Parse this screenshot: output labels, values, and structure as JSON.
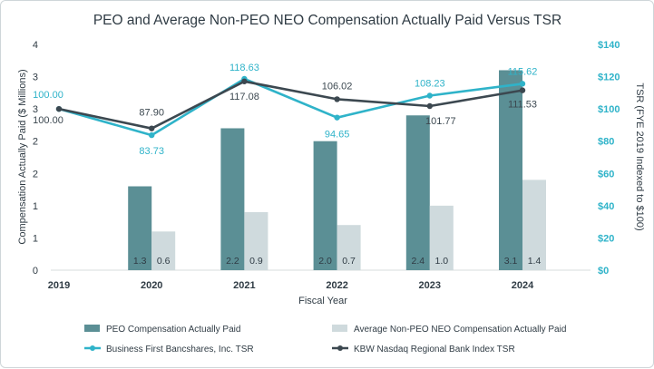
{
  "chart_data": {
    "type": "bar",
    "title": "PEO and Average Non-PEO NEO Compensation Actually Paid Versus TSR",
    "xlabel": "Fiscal Year",
    "ylabel": "Compensation Actually Paid ($ Millions)",
    "y2label": "TSR (FYE 2019 Indexed to $100)",
    "categories": [
      "2019",
      "2020",
      "2021",
      "2022",
      "2023",
      "2024"
    ],
    "ylim": [
      0,
      3.5
    ],
    "y_ticks": [
      {
        "value": 0,
        "label": "0"
      },
      {
        "value": 0.5,
        "label": "1"
      },
      {
        "value": 1.0,
        "label": "1"
      },
      {
        "value": 1.5,
        "label": "2"
      },
      {
        "value": 2.0,
        "label": "2"
      },
      {
        "value": 2.5,
        "label": "3"
      },
      {
        "value": 3.0,
        "label": "3"
      },
      {
        "value": 3.5,
        "label": "4"
      }
    ],
    "y2lim": [
      0,
      140
    ],
    "y2_ticks": [
      {
        "value": 0,
        "label": "$0"
      },
      {
        "value": 20,
        "label": "$20"
      },
      {
        "value": 40,
        "label": "$40"
      },
      {
        "value": 60,
        "label": "$60"
      },
      {
        "value": 80,
        "label": "$80"
      },
      {
        "value": 100,
        "label": "$100"
      },
      {
        "value": 120,
        "label": "$120"
      },
      {
        "value": 140,
        "label": "$140"
      }
    ],
    "bar_series": [
      {
        "name": "PEO Compensation Actually Paid",
        "color": "#5b8f95",
        "values": [
          null,
          1.3,
          2.2,
          2.0,
          2.4,
          3.1
        ],
        "labels": [
          "",
          "1.3",
          "2.2",
          "2.0",
          "2.4",
          "3.1"
        ]
      },
      {
        "name": "Average Non-PEO NEO Compensation Actually Paid",
        "color": "#cfdadd",
        "values": [
          null,
          0.6,
          0.9,
          0.7,
          1.0,
          1.4
        ],
        "labels": [
          "",
          "0.6",
          "0.9",
          "0.7",
          "1.0",
          "1.4"
        ]
      }
    ],
    "line_series": [
      {
        "name": "Business First Bancshares, Inc. TSR",
        "color": "#2fb3c9",
        "values": [
          100.0,
          83.73,
          118.63,
          94.65,
          108.23,
          115.62
        ],
        "labels": [
          "100.00",
          "83.73",
          "118.63",
          "94.65",
          "108.23",
          "115.62"
        ]
      },
      {
        "name": "KBW Nasdaq Regional Bank Index TSR",
        "color": "#3c4850",
        "values": [
          100.0,
          87.9,
          117.08,
          106.02,
          101.77,
          111.53
        ],
        "labels": [
          "100.00",
          "87.90",
          "117.08",
          "106.02",
          "101.77",
          "111.53"
        ]
      }
    ],
    "legend_position": "bottom",
    "grid": false
  },
  "colors": {
    "title": "#2f3b44",
    "axis_text": "#2f3b44",
    "right_axis": "#2fb3c9",
    "peo_bar": "#5b8f95",
    "neo_bar": "#cfdadd",
    "bfb_line": "#2fb3c9",
    "kbw_line": "#3c4850"
  }
}
